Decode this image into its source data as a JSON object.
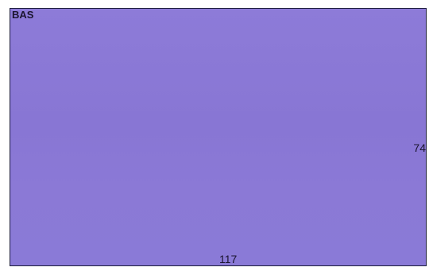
{
  "panel": {
    "color": "#8a78d6",
    "top_left_label": "BAS",
    "right_label": "74",
    "bottom_label": "117"
  }
}
